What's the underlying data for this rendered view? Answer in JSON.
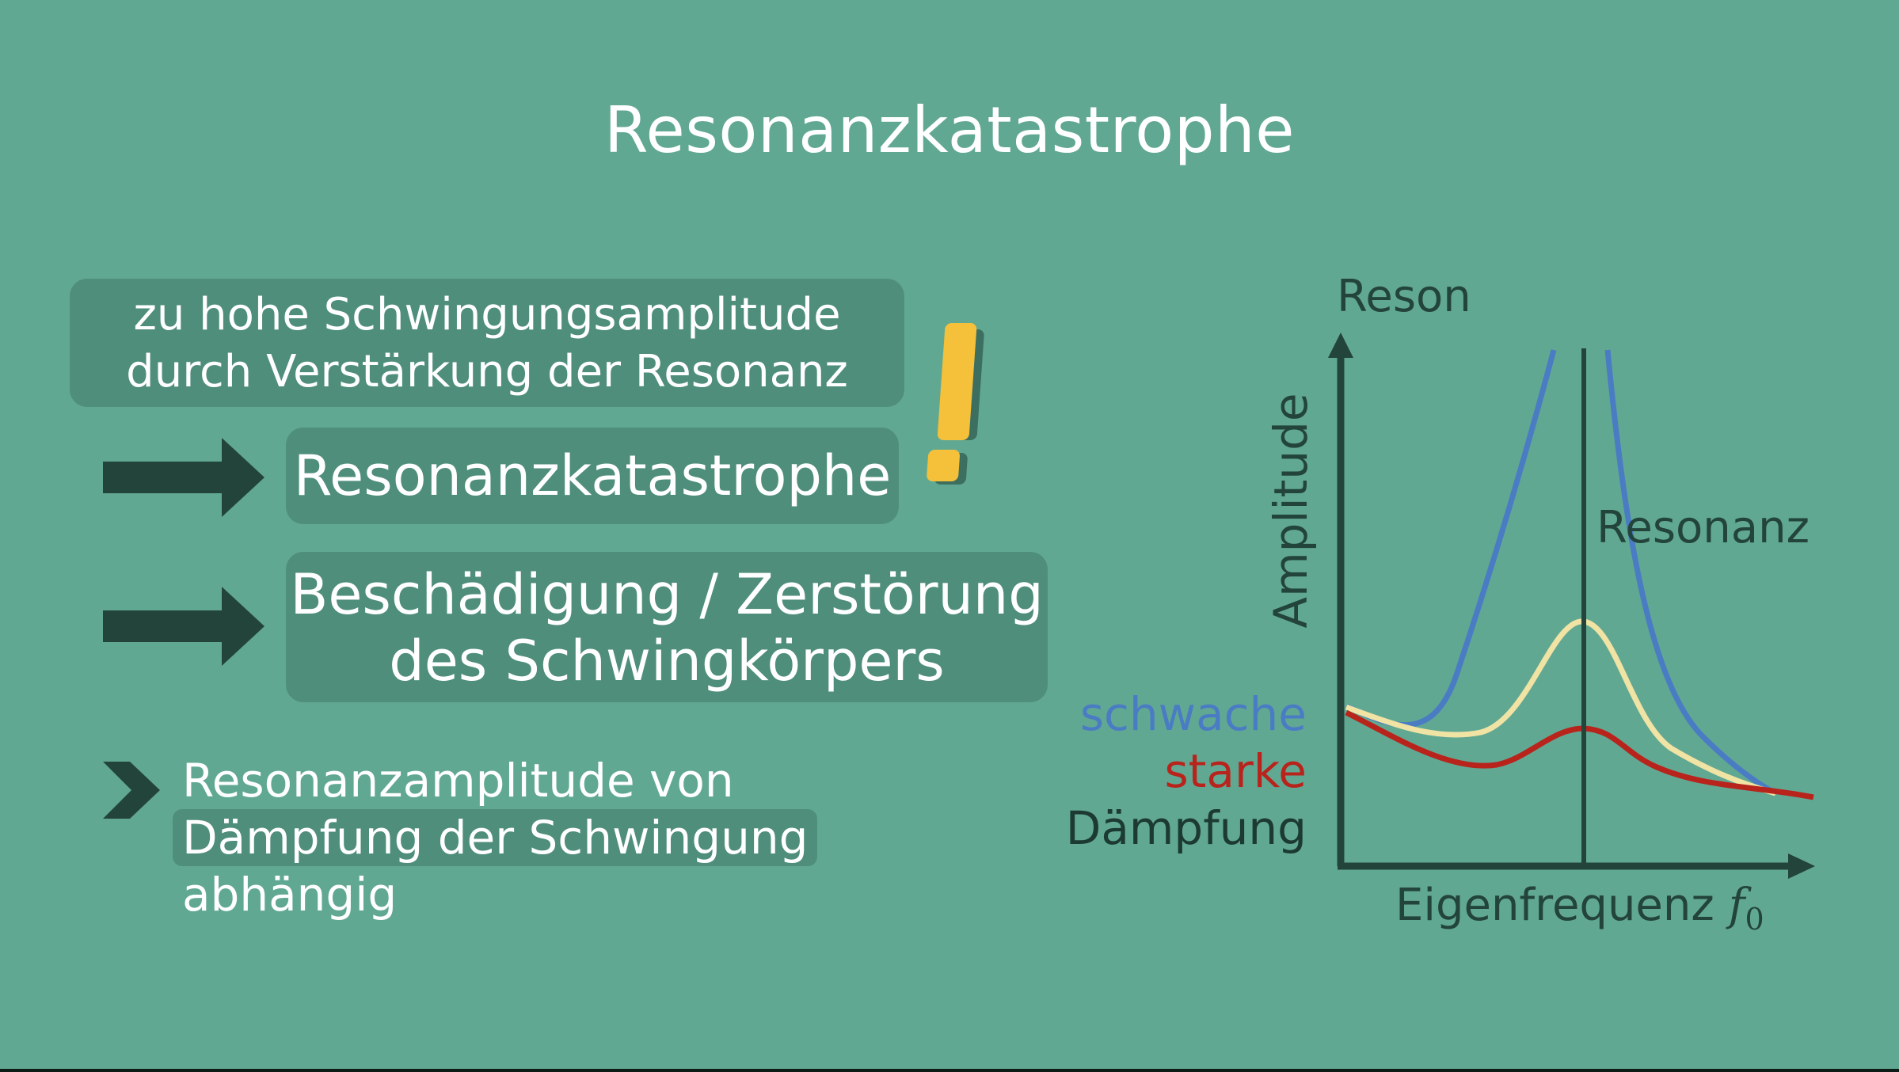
{
  "title": "Resonanzkatastrophe",
  "box1": {
    "line1": "zu hohe Schwingungsamplitude",
    "line2": "durch Verstärkung der Resonanz"
  },
  "box2": {
    "text": "Resonanzkatastrophe"
  },
  "box3": {
    "line1": "Beschädigung / Zerstörung",
    "line2": "des Schwingkörpers"
  },
  "bullet": {
    "line1": "Resonanzamplitude von",
    "line2": "Dämpfung der Schwingung",
    "line3": "abhängig"
  },
  "legend": {
    "weak": "schwache",
    "strong": "starke",
    "damping": "Dämpfung"
  },
  "colors": {
    "background": "#61a893",
    "box": "#4f8e7b",
    "dark": "#23443a",
    "weak_damping": "#4a7cc4",
    "strong_damping": "#b8241c",
    "medium_damping": "#f0e3a4",
    "exclamation": "#f5c03a"
  },
  "icons": {
    "exclamation": "exclamation-icon",
    "arrow": "right-arrow-icon",
    "chevron": "chevron-right-icon"
  },
  "chart_data": {
    "type": "line",
    "xlabel": "Eigenfrequenz",
    "xlabel_symbol": "f",
    "xlabel_subscript": "0",
    "ylabel": "Amplitude",
    "top_label": "Reson",
    "resonance_label": "Resonanz"
  }
}
